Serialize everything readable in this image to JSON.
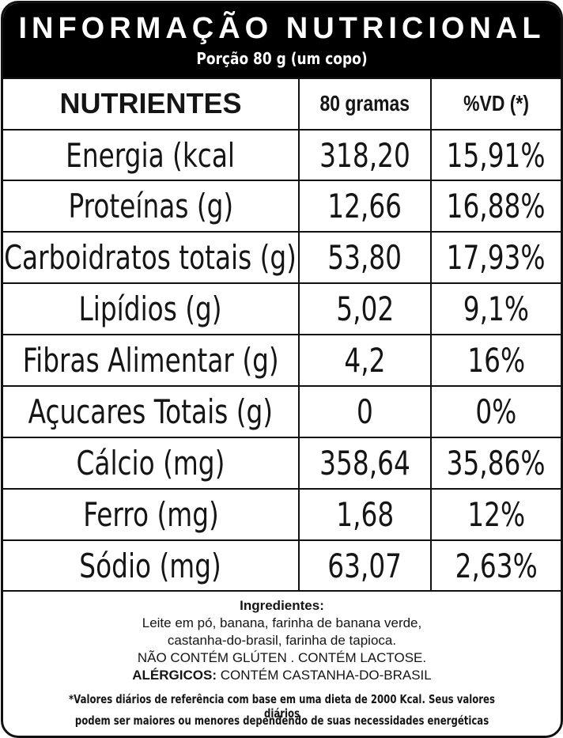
{
  "header": {
    "title": "INFORMAÇÃO NUTRICIONAL",
    "serving": "Porção 80 g (um copo)"
  },
  "table": {
    "headers": {
      "nutrient": "NUTRIENTES",
      "amount": "80 gramas",
      "dv": "%VD (*)"
    },
    "rows": [
      {
        "name": "Energia (kcal",
        "amount": "318,20",
        "dv": "15,91%"
      },
      {
        "name": "Proteínas (g)",
        "amount": "12,66",
        "dv": "16,88%"
      },
      {
        "name": "Carboidratos totais (g)",
        "amount": "53,80",
        "dv": "17,93%"
      },
      {
        "name": "Lipídios (g)",
        "amount": "5,02",
        "dv": "9,1%"
      },
      {
        "name": "Fibras Alimentar (g)",
        "amount": "4,2",
        "dv": "16%"
      },
      {
        "name": "Açucares Totais (g)",
        "amount": "0",
        "dv": "0%"
      },
      {
        "name": "Cálcio (mg)",
        "amount": "358,64",
        "dv": "35,86%"
      },
      {
        "name": "Ferro (mg)",
        "amount": "1,68",
        "dv": "12%"
      },
      {
        "name": "Sódio (mg)",
        "amount": "63,07",
        "dv": "2,63%"
      }
    ]
  },
  "footer": {
    "ingredients_title": "Ingredientes:",
    "ingredients_line1": "Leite em pó, banana, farinha de banana verde,",
    "ingredients_line2": "castanha-do-brasil, farinha de tapioca.",
    "gluten_lactose": "NÃO CONTÉM GLÚTEN . CONTÉM LACTOSE.",
    "allergens_label": "ALÉRGICOS:",
    "allergens_text": " CONTÉM CASTANHA-DO-BRASIL",
    "note_line1": "*Valores diários de referência com base em uma dieta de 2000 Kcal. Seus valores diários",
    "note_line2": "podem ser maiores ou menores dependendo de suas necessidades energéticas"
  }
}
